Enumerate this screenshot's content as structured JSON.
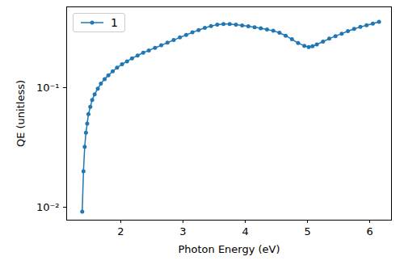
{
  "chart_data": {
    "type": "line",
    "x_label": "Photon Energy (eV)",
    "y_label": "QE (unitless)",
    "log": "y",
    "grid": false,
    "legend": "upper left",
    "xlim": [
      1.13,
      6.35
    ],
    "xticks": [
      2,
      3,
      4,
      5,
      6
    ],
    "ylim": [
      0.0078,
      0.474
    ],
    "yticks": [
      {
        "value": 0.01,
        "label": "10⁻²"
      },
      {
        "value": 0.1,
        "label": "10⁻¹"
      }
    ],
    "x": [
      1.38,
      1.4,
      1.42,
      1.44,
      1.46,
      1.48,
      1.51,
      1.54,
      1.58,
      1.63,
      1.68,
      1.74,
      1.8,
      1.87,
      1.94,
      2.02,
      2.1,
      2.18,
      2.27,
      2.36,
      2.45,
      2.55,
      2.65,
      2.75,
      2.85,
      2.95,
      3.05,
      3.15,
      3.25,
      3.35,
      3.45,
      3.55,
      3.65,
      3.75,
      3.85,
      3.95,
      4.05,
      4.15,
      4.25,
      4.35,
      4.45,
      4.55,
      4.65,
      4.75,
      4.85,
      4.95,
      5.02,
      5.08,
      5.15,
      5.25,
      5.35,
      5.45,
      5.55,
      5.65,
      5.75,
      5.85,
      5.95,
      6.05,
      6.15
    ],
    "series": [
      {
        "name": "1",
        "color": "#1f77b4",
        "marker": "o",
        "line_style": "solid",
        "values": [
          0.0092,
          0.02,
          0.032,
          0.042,
          0.05,
          0.06,
          0.069,
          0.079,
          0.088,
          0.098,
          0.108,
          0.118,
          0.127,
          0.137,
          0.147,
          0.157,
          0.166,
          0.176,
          0.186,
          0.196,
          0.205,
          0.215,
          0.226,
          0.238,
          0.25,
          0.263,
          0.276,
          0.29,
          0.303,
          0.316,
          0.328,
          0.336,
          0.34,
          0.34,
          0.336,
          0.331,
          0.326,
          0.32,
          0.314,
          0.307,
          0.299,
          0.288,
          0.272,
          0.254,
          0.236,
          0.224,
          0.219,
          0.222,
          0.23,
          0.243,
          0.257,
          0.27,
          0.283,
          0.297,
          0.31,
          0.322,
          0.333,
          0.343,
          0.355
        ]
      }
    ]
  }
}
